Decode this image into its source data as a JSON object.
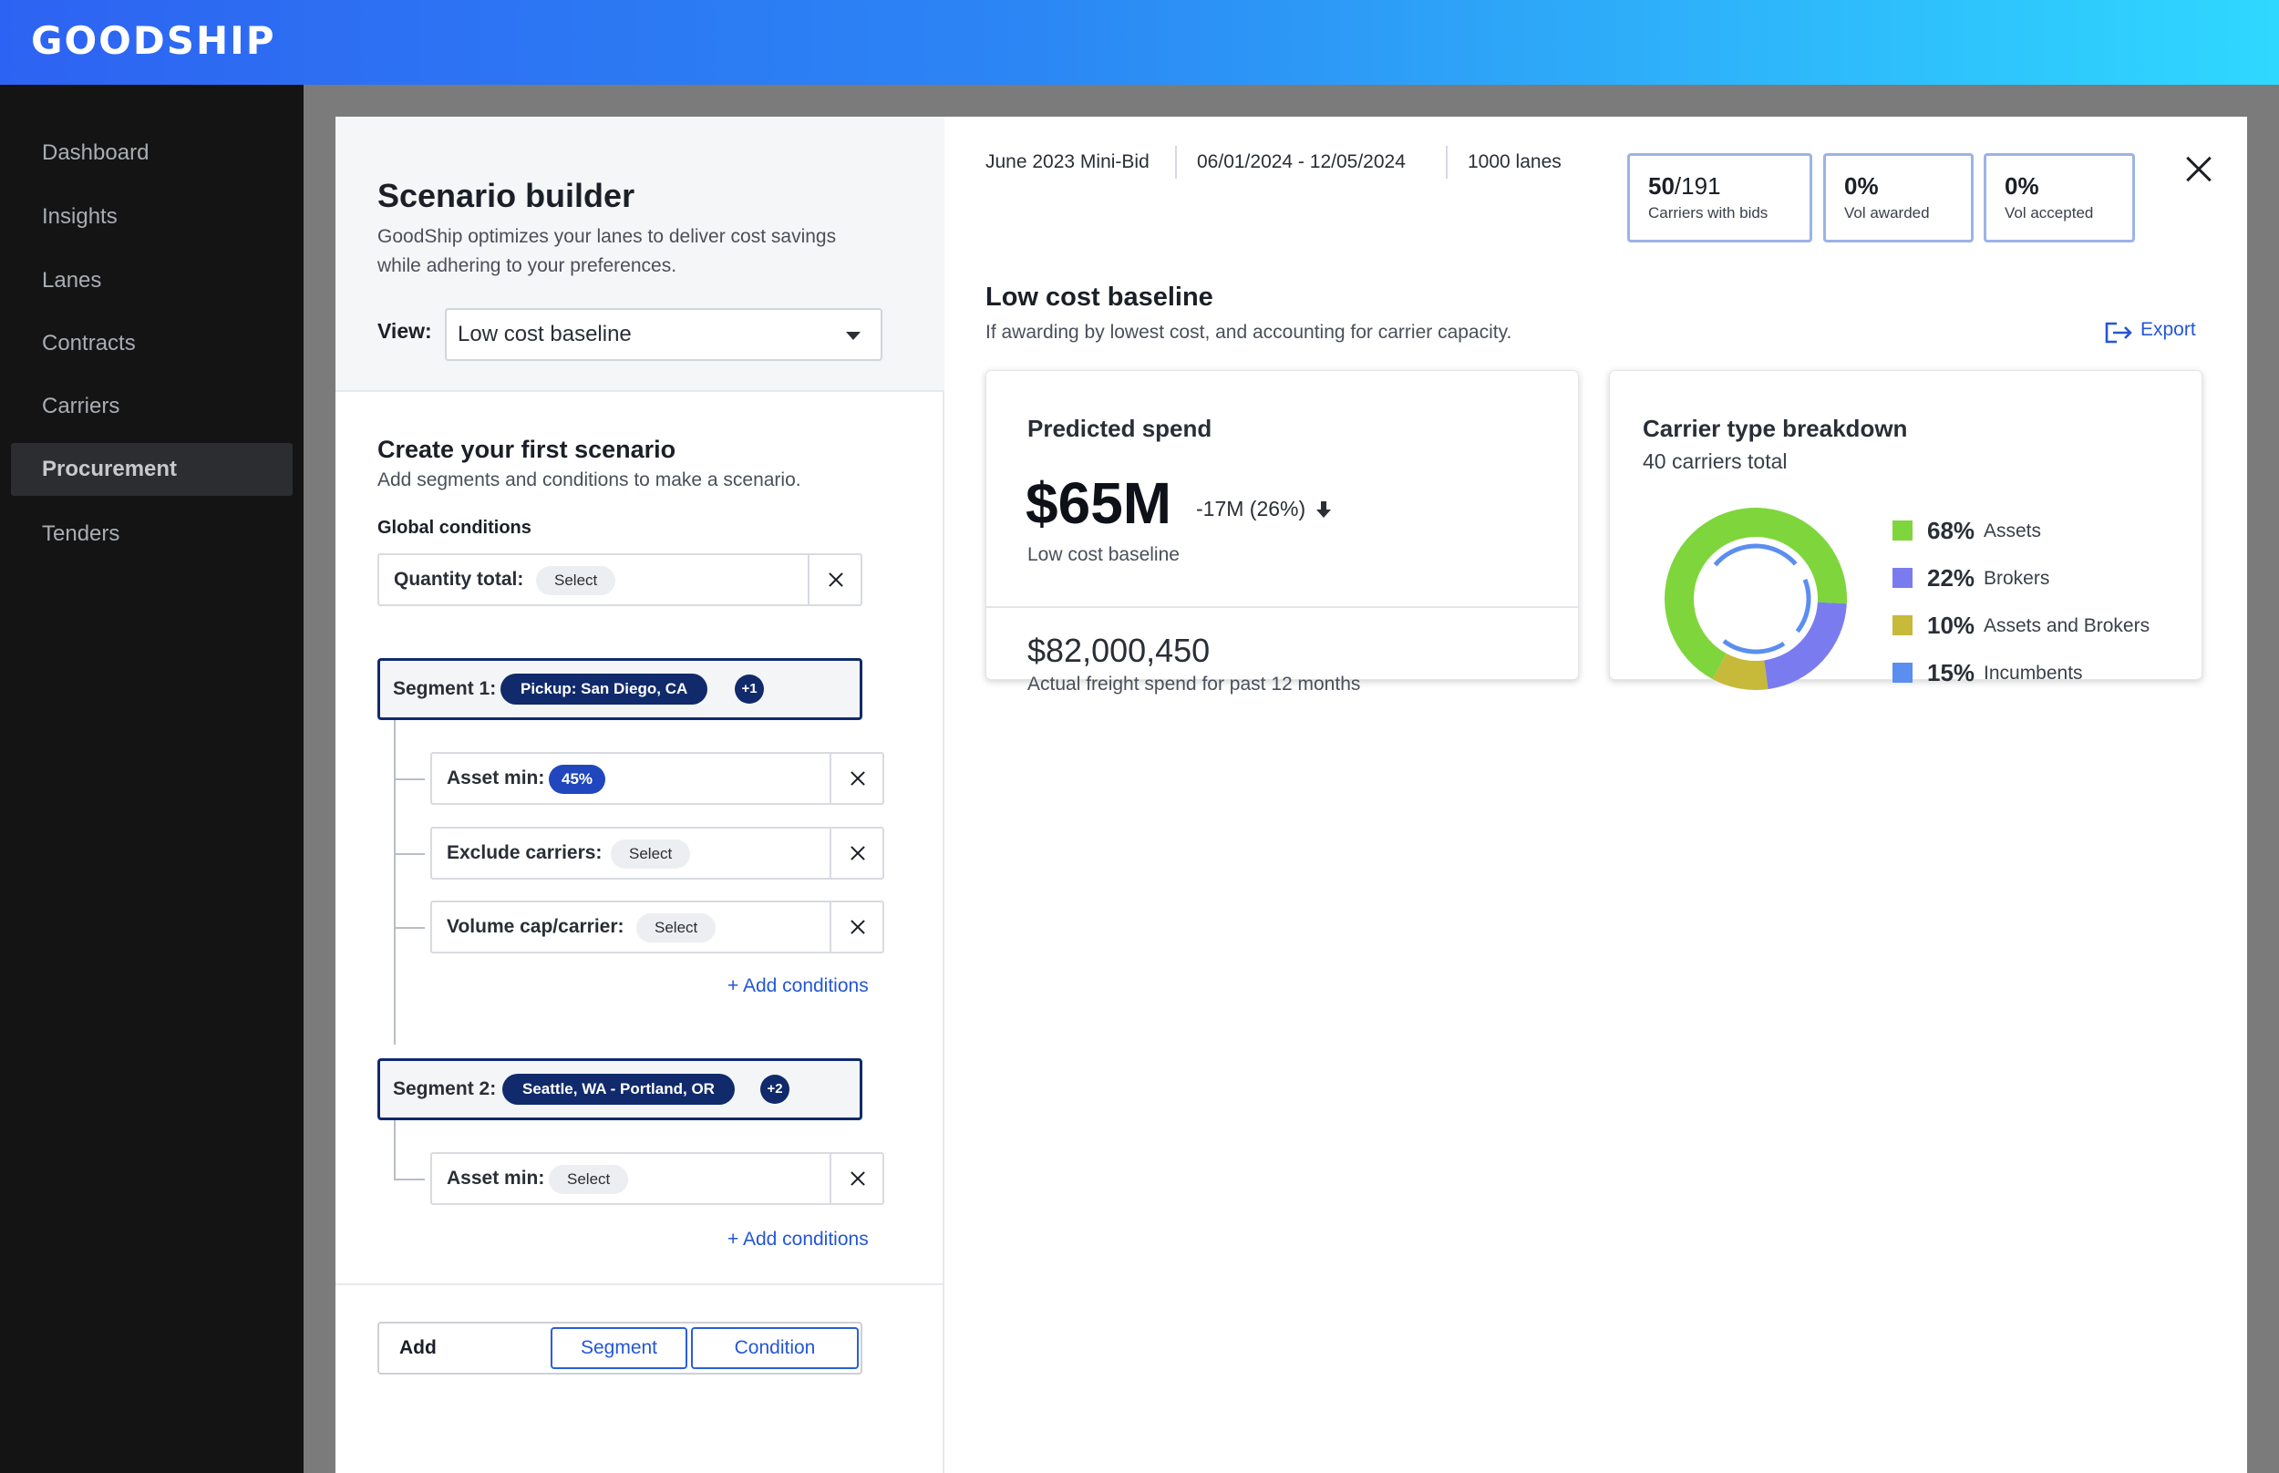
{
  "app": {
    "logo": "GOODSHIP"
  },
  "sidebar": {
    "items": [
      {
        "label": "Dashboard",
        "active": false
      },
      {
        "label": "Insights",
        "active": false
      },
      {
        "label": "Lanes",
        "active": false
      },
      {
        "label": "Contracts",
        "active": false
      },
      {
        "label": "Carriers",
        "active": false
      },
      {
        "label": "Procurement",
        "active": true
      },
      {
        "label": "Tenders",
        "active": false
      }
    ]
  },
  "builder": {
    "title": "Scenario builder",
    "description": "GoodShip optimizes your lanes to deliver cost savings while adhering to your preferences.",
    "view_label": "View:",
    "view_value": "Low cost baseline",
    "section_title": "Create your first scenario",
    "section_desc": "Add segments and conditions to make a scenario.",
    "global_label": "Global conditions",
    "global_condition": {
      "label": "Quantity total:",
      "value": "Select"
    },
    "segments": [
      {
        "label": "Segment 1:",
        "chip": "Pickup: San Diego, CA",
        "extra": "+1",
        "conditions": [
          {
            "label": "Asset min:",
            "value": "45%",
            "filled": true
          },
          {
            "label": "Exclude carriers:",
            "value": "Select",
            "filled": false
          },
          {
            "label": "Volume cap/carrier:",
            "value": "Select",
            "filled": false
          }
        ],
        "add_label": "+ Add conditions"
      },
      {
        "label": "Segment 2:",
        "chip": "Seattle, WA - Portland, OR",
        "extra": "+2",
        "conditions": [
          {
            "label": "Asset min:",
            "value": "Select",
            "filled": false
          }
        ],
        "add_label": "+ Add conditions"
      }
    ],
    "add_bar": {
      "label": "Add",
      "segment_btn": "Segment",
      "condition_btn": "Condition"
    }
  },
  "bid": {
    "name": "June 2023 Mini-Bid",
    "dates": "06/01/2024 - 12/05/2024",
    "lanes": "1000 lanes",
    "stats": [
      {
        "value_bold": "50",
        "value_rest": "/191",
        "label": "Carriers with bids"
      },
      {
        "value_bold": "0%",
        "value_rest": "",
        "label": "Vol awarded"
      },
      {
        "value_bold": "0%",
        "value_rest": "",
        "label": "Vol accepted"
      }
    ]
  },
  "baseline": {
    "title": "Low cost baseline",
    "description": "If awarding by lowest cost, and accounting for carrier capacity.",
    "export_label": "Export"
  },
  "predicted": {
    "title": "Predicted spend",
    "value": "$65M",
    "delta": "-17M (26%)",
    "sub": "Low cost baseline",
    "actual_value": "$82,000,450",
    "actual_sub": "Actual freight spend for past 12 months"
  },
  "breakdown": {
    "title": "Carrier type breakdown",
    "subtitle": "40 carriers total",
    "items": [
      {
        "pct": "68%",
        "name": "Assets",
        "color": "#7ed63c"
      },
      {
        "pct": "22%",
        "name": "Brokers",
        "color": "#7b7bf0"
      },
      {
        "pct": "10%",
        "name": "Assets and Brokers",
        "color": "#c7b93a"
      },
      {
        "pct": "15%",
        "name": "Incumbents",
        "color": "#5b8ef0"
      }
    ]
  },
  "chart_data": {
    "type": "pie",
    "categories": [
      "Assets",
      "Brokers",
      "Assets and Brokers"
    ],
    "values": [
      68,
      22,
      10
    ],
    "title": "Carrier type breakdown"
  }
}
